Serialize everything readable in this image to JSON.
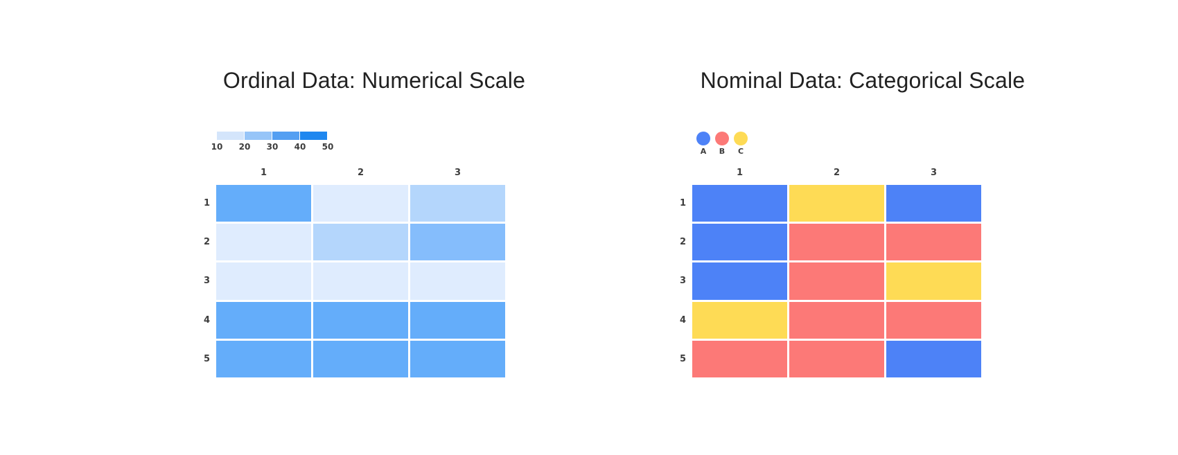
{
  "charts": [
    {
      "id": "ordinal",
      "title": "Ordinal Data: Numerical Scale",
      "legend": {
        "type": "ramp",
        "swatch_colors": [
          "#d4e5fb",
          "#97c5f8",
          "#549ff2",
          "#1f87ef"
        ],
        "tick_labels": [
          "10",
          "20",
          "30",
          "40",
          "50"
        ]
      },
      "column_labels": [
        "1",
        "2",
        "3"
      ],
      "row_labels": [
        "1",
        "2",
        "3",
        "4",
        "5"
      ],
      "palette": {
        "s1": "#dfecfe",
        "s2": "#b4d6fc",
        "s3": "#85bdfc",
        "s4": "#64adfa"
      },
      "cells": [
        [
          "s4",
          "s1",
          "s2"
        ],
        [
          "s1",
          "s2",
          "s3"
        ],
        [
          "s1",
          "s1",
          "s1"
        ],
        [
          "s4",
          "s4",
          "s4"
        ],
        [
          "s4",
          "s4",
          "s4"
        ]
      ]
    },
    {
      "id": "nominal",
      "title": "Nominal Data: Categorical Scale",
      "legend": {
        "type": "circles",
        "items": [
          {
            "label": "A",
            "color": "#4d82f7"
          },
          {
            "label": "B",
            "color": "#fc7977"
          },
          {
            "label": "C",
            "color": "#fedb55"
          }
        ]
      },
      "column_labels": [
        "1",
        "2",
        "3"
      ],
      "row_labels": [
        "1",
        "2",
        "3",
        "4",
        "5"
      ],
      "palette": {
        "A": "#4d82f7",
        "B": "#fc7977",
        "C": "#fedb55"
      },
      "cells": [
        [
          "A",
          "C",
          "A"
        ],
        [
          "A",
          "B",
          "B"
        ],
        [
          "A",
          "B",
          "C"
        ],
        [
          "C",
          "B",
          "B"
        ],
        [
          "B",
          "B",
          "A"
        ]
      ]
    }
  ],
  "chart_data": [
    {
      "type": "heatmap",
      "title": "Ordinal Data: Numerical Scale",
      "x": [
        "1",
        "2",
        "3"
      ],
      "y": [
        "1",
        "2",
        "3",
        "4",
        "5"
      ],
      "values": [
        [
          34,
          12,
          20
        ],
        [
          12,
          20,
          27
        ],
        [
          12,
          12,
          12
        ],
        [
          34,
          34,
          34
        ],
        [
          34,
          34,
          34
        ]
      ],
      "scale": {
        "type": "numerical",
        "domain": [
          10,
          50
        ],
        "ticks": [
          10,
          20,
          30,
          40,
          50
        ],
        "colors": [
          "#d4e5fb",
          "#97c5f8",
          "#549ff2",
          "#1f87ef"
        ]
      },
      "legend_position": "top-left",
      "grid": false
    },
    {
      "type": "heatmap",
      "title": "Nominal Data: Categorical Scale",
      "x": [
        "1",
        "2",
        "3"
      ],
      "y": [
        "1",
        "2",
        "3",
        "4",
        "5"
      ],
      "values": [
        [
          "A",
          "C",
          "A"
        ],
        [
          "A",
          "B",
          "B"
        ],
        [
          "A",
          "B",
          "C"
        ],
        [
          "C",
          "B",
          "B"
        ],
        [
          "B",
          "B",
          "A"
        ]
      ],
      "scale": {
        "type": "categorical",
        "categories": [
          "A",
          "B",
          "C"
        ],
        "colors": [
          "#4d82f7",
          "#fc7977",
          "#fedb55"
        ]
      },
      "legend_position": "top-left",
      "grid": false
    }
  ]
}
